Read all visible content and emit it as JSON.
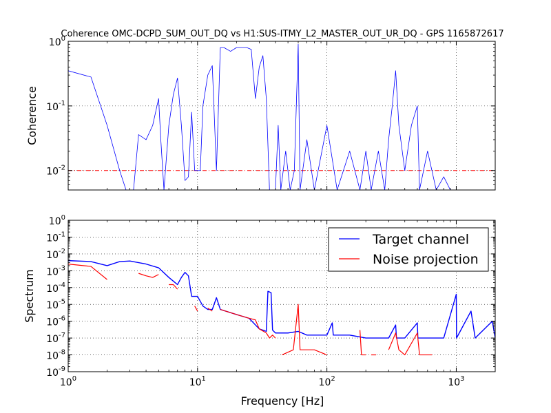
{
  "chart_data": [
    {
      "type": "line",
      "title": "Coherence OMC-DCPD_SUM_OUT_DQ vs H1:SUS-ITMY_L2_MASTER_OUT_UR_DQ - GPS 1165872617",
      "ylabel": "Coherence",
      "xlabel": "",
      "xscale": "log",
      "yscale": "log",
      "xlim": [
        1,
        2000
      ],
      "ylim": [
        0.005,
        1
      ],
      "grid": true,
      "ytick_labels": [
        "10^0",
        "10^-1",
        "10^-2"
      ],
      "threshold_line": {
        "y": 0.01,
        "color": "#ff0000",
        "style": "dash-dot"
      },
      "series": [
        {
          "color": "#0000ff",
          "points": [
            [
              1,
              0.35
            ],
            [
              1.5,
              0.28
            ],
            [
              2,
              0.05
            ],
            [
              2.5,
              0.01
            ],
            [
              2.8,
              0.005
            ],
            [
              3.2,
              0.005
            ],
            [
              3.5,
              0.036
            ],
            [
              4,
              0.03
            ],
            [
              4.5,
              0.05
            ],
            [
              5,
              0.13
            ],
            [
              5.2,
              0.03
            ],
            [
              5.5,
              0.005
            ],
            [
              6,
              0.05
            ],
            [
              6.5,
              0.15
            ],
            [
              7,
              0.27
            ],
            [
              7.5,
              0.05
            ],
            [
              8,
              0.007
            ],
            [
              8.5,
              0.008
            ],
            [
              9,
              0.08
            ],
            [
              9.5,
              0.01
            ],
            [
              10.5,
              0.01
            ],
            [
              11,
              0.1
            ],
            [
              12,
              0.3
            ],
            [
              13,
              0.42
            ],
            [
              14,
              0.01
            ],
            [
              15,
              0.8
            ],
            [
              16,
              0.8
            ],
            [
              18,
              0.7
            ],
            [
              20,
              0.8
            ],
            [
              24,
              0.8
            ],
            [
              26,
              0.75
            ],
            [
              28,
              0.13
            ],
            [
              30,
              0.4
            ],
            [
              32,
              0.6
            ],
            [
              34,
              0.13
            ],
            [
              36,
              0.005
            ],
            [
              40,
              0.005
            ],
            [
              42,
              0.05
            ],
            [
              44,
              0.005
            ],
            [
              48,
              0.02
            ],
            [
              52,
              0.005
            ],
            [
              56,
              0.01
            ],
            [
              60,
              0.9
            ],
            [
              62,
              0.005
            ],
            [
              70,
              0.03
            ],
            [
              80,
              0.005
            ],
            [
              100,
              0.05
            ],
            [
              120,
              0.005
            ],
            [
              150,
              0.02
            ],
            [
              180,
              0.005
            ],
            [
              200,
              0.02
            ],
            [
              220,
              0.005
            ],
            [
              250,
              0.02
            ],
            [
              280,
              0.005
            ],
            [
              300,
              0.03
            ],
            [
              320,
              0.1
            ],
            [
              340,
              0.35
            ],
            [
              360,
              0.05
            ],
            [
              400,
              0.01
            ],
            [
              450,
              0.05
            ],
            [
              500,
              0.1
            ],
            [
              520,
              0.005
            ],
            [
              600,
              0.02
            ],
            [
              700,
              0.005
            ],
            [
              800,
              0.008
            ],
            [
              900,
              0.005
            ],
            [
              1000,
              0.005
            ]
          ]
        }
      ]
    },
    {
      "type": "line",
      "title": "",
      "ylabel": "Spectrum",
      "xlabel": "Frequency [Hz]",
      "xscale": "log",
      "yscale": "log",
      "xlim": [
        1,
        2000
      ],
      "ylim": [
        1e-09,
        1
      ],
      "grid": true,
      "xtick_labels": [
        "10^0",
        "10^1",
        "10^2",
        "10^3"
      ],
      "ytick_labels": [
        "10^0",
        "10^-1",
        "10^-2",
        "10^-3",
        "10^-4",
        "10^-5",
        "10^-6",
        "10^-7",
        "10^-8",
        "10^-9"
      ],
      "legend_position": "top-right",
      "series": [
        {
          "name": "Target channel",
          "color": "#0000ff",
          "points": [
            [
              1,
              0.004
            ],
            [
              1.5,
              0.0035
            ],
            [
              2,
              0.002
            ],
            [
              2.5,
              0.0035
            ],
            [
              3,
              0.0038
            ],
            [
              4,
              0.0025
            ],
            [
              5,
              0.0015
            ],
            [
              6,
              0.0004
            ],
            [
              7,
              0.00015
            ],
            [
              7.5,
              0.0004
            ],
            [
              8,
              0.0008
            ],
            [
              8.5,
              0.0005
            ],
            [
              9,
              3e-05
            ],
            [
              10,
              3e-05
            ],
            [
              11,
              8e-06
            ],
            [
              12,
              5e-06
            ],
            [
              13,
              5e-06
            ],
            [
              14,
              2.5e-05
            ],
            [
              15,
              5e-06
            ],
            [
              20,
              2.5e-06
            ],
            [
              25,
              1.5e-06
            ],
            [
              30,
              3.5e-07
            ],
            [
              34,
              2.5e-07
            ],
            [
              35,
              6e-05
            ],
            [
              37,
              5e-05
            ],
            [
              38,
              3e-07
            ],
            [
              40,
              2e-07
            ],
            [
              50,
              2e-07
            ],
            [
              60,
              2.5e-07
            ],
            [
              70,
              1.5e-07
            ],
            [
              100,
              1.5e-07
            ],
            [
              110,
              8e-07
            ],
            [
              112,
              1.5e-07
            ],
            [
              150,
              1.5e-07
            ],
            [
              200,
              1e-07
            ],
            [
              300,
              1e-07
            ],
            [
              340,
              6e-07
            ],
            [
              345,
              1e-07
            ],
            [
              400,
              1e-07
            ],
            [
              500,
              8e-07
            ],
            [
              505,
              1e-07
            ],
            [
              800,
              1e-07
            ],
            [
              1000,
              4e-05
            ],
            [
              1005,
              1e-07
            ],
            [
              1300,
              4e-06
            ],
            [
              1400,
              1e-07
            ],
            [
              1900,
              1e-06
            ],
            [
              2000,
              1e-07
            ]
          ]
        },
        {
          "name": "Noise projection",
          "color": "#ff0000",
          "segments": [
            [
              [
                1,
                0.0025
              ],
              [
                1.5,
                0.0018
              ],
              [
                2,
                0.0003
              ]
            ],
            [
              [
                3.5,
                0.0007
              ],
              [
                4,
                0.0005
              ],
              [
                4.5,
                0.0004
              ],
              [
                5,
                0.0006
              ]
            ],
            [
              [
                6,
                0.00015
              ],
              [
                6.5,
                0.00015
              ],
              [
                7,
                8e-05
              ]
            ],
            [
              [
                9.5,
                8e-06
              ],
              [
                10,
                4e-06
              ]
            ],
            [
              [
                12,
                6e-06
              ],
              [
                13,
                4e-06
              ]
            ],
            [
              [
                15,
                5e-06
              ],
              [
                20,
                2.5e-06
              ],
              [
                25,
                1.5e-06
              ],
              [
                28,
                1.2e-06
              ],
              [
                30,
                3.5e-07
              ],
              [
                34,
                2e-07
              ],
              [
                36,
                1e-07
              ],
              [
                38,
                1.5e-07
              ],
              [
                40,
                1e-07
              ]
            ],
            [
              [
                45,
                1e-08
              ],
              [
                55,
                2e-08
              ],
              [
                60,
                1e-05
              ],
              [
                62,
                2e-08
              ],
              [
                80,
                2e-08
              ],
              [
                100,
                1e-08
              ]
            ],
            [
              [
                180,
                3e-07
              ],
              [
                185,
                1e-08
              ],
              [
                200,
                1e-08
              ]
            ],
            [
              [
                220,
                1e-08
              ],
              [
                240,
                1e-08
              ]
            ],
            [
              [
                300,
                2e-08
              ],
              [
                340,
                2e-07
              ],
              [
                360,
                2e-08
              ],
              [
                400,
                1e-08
              ],
              [
                500,
                2e-07
              ],
              [
                520,
                1e-08
              ],
              [
                650,
                1e-08
              ]
            ]
          ]
        }
      ]
    }
  ]
}
